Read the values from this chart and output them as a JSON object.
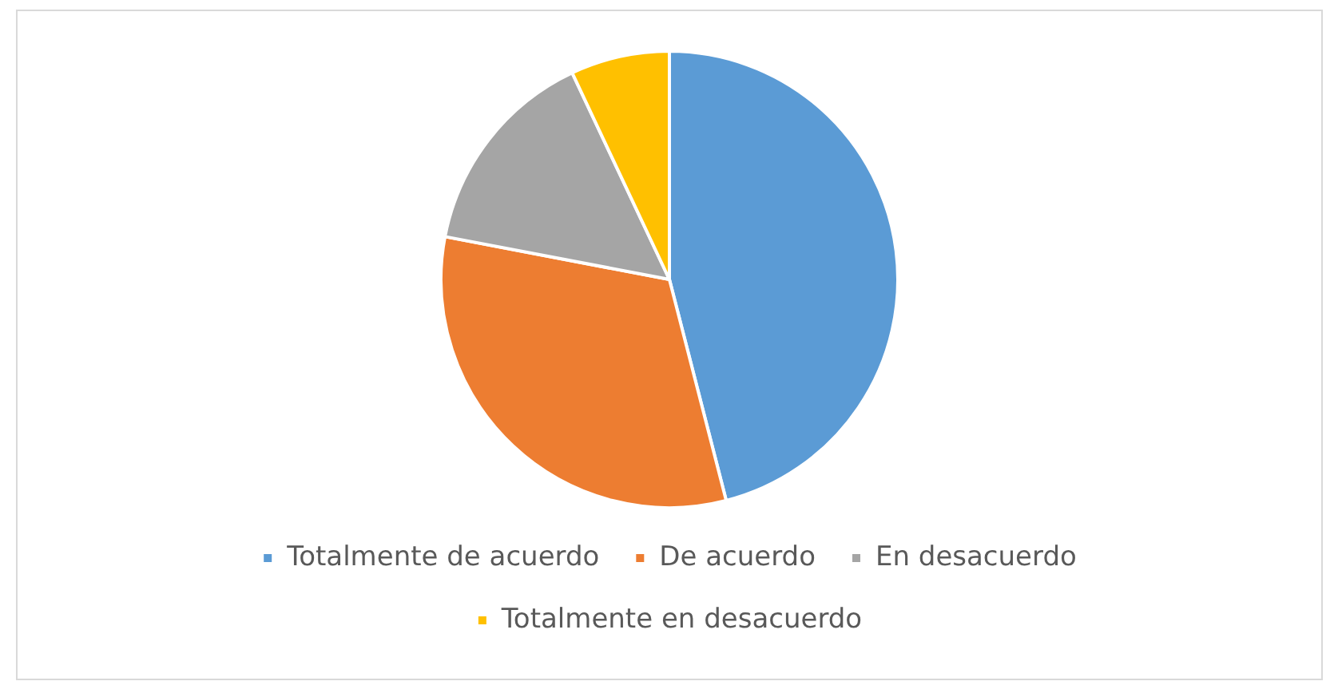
{
  "chart_data": {
    "type": "pie",
    "categories": [
      "Totalmente de acuerdo",
      "De acuerdo",
      "En desacuerdo",
      "Totalmente en desacuerdo"
    ],
    "values": [
      46,
      32,
      15,
      7
    ],
    "colors": [
      "#5b9bd5",
      "#ed7d31",
      "#a5a5a5",
      "#ffc000"
    ],
    "legend": "bottom"
  }
}
